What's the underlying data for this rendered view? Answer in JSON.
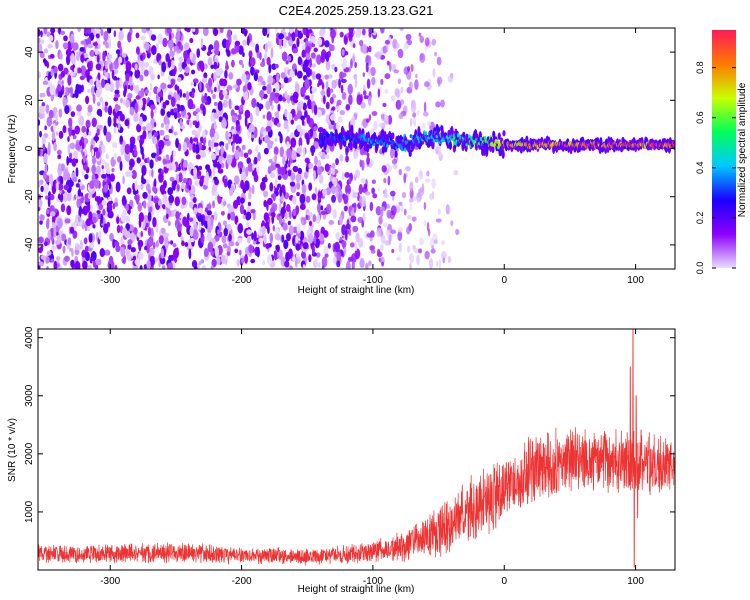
{
  "title": "C2E4.2025.259.13.23.G21",
  "chart_data": [
    {
      "type": "heatmap",
      "name": "spectrogram",
      "xlabel": "Height of straight line (km)",
      "ylabel": "Frequency (Hz)",
      "xlim": [
        -355,
        130
      ],
      "ylim": [
        -50,
        50
      ],
      "xticks": [
        -300,
        -200,
        -100,
        0,
        100
      ],
      "yticks": [
        -40,
        -20,
        0,
        20,
        40
      ],
      "xtick_labels": [
        "-300",
        "-200",
        "-100",
        "0",
        "100"
      ],
      "ytick_labels": [
        "-40",
        "-20",
        "0",
        "20",
        "40"
      ],
      "noise_region": {
        "x_range": [
          -355,
          -65
        ],
        "fade_to": -20
      },
      "signal_track": [
        {
          "x": -140,
          "f": 3.5,
          "amp": 0.3
        },
        {
          "x": -120,
          "f": 4.5,
          "amp": 0.35
        },
        {
          "x": -100,
          "f": 3.0,
          "amp": 0.4
        },
        {
          "x": -80,
          "f": 1.0,
          "amp": 0.4
        },
        {
          "x": -60,
          "f": 5.0,
          "amp": 0.45
        },
        {
          "x": -40,
          "f": 4.0,
          "amp": 0.5
        },
        {
          "x": -20,
          "f": 3.0,
          "amp": 0.6
        },
        {
          "x": 0,
          "f": 1.5,
          "amp": 0.8
        },
        {
          "x": 20,
          "f": 1.5,
          "amp": 0.85
        },
        {
          "x": 40,
          "f": 1.5,
          "amp": 0.9
        },
        {
          "x": 60,
          "f": 1.5,
          "amp": 0.9
        },
        {
          "x": 80,
          "f": 1.5,
          "amp": 0.92
        },
        {
          "x": 100,
          "f": 1.5,
          "amp": 0.92
        },
        {
          "x": 130,
          "f": 1.5,
          "amp": 0.95
        }
      ],
      "colorbar": {
        "label": "Normalized spectral amplitude",
        "range": [
          0,
          0.95
        ],
        "ticks": [
          0.0,
          0.2,
          0.4,
          0.6,
          0.8
        ],
        "tick_labels": [
          "0.0",
          "0.2",
          "0.4",
          "0.6",
          "0.8"
        ],
        "colors": [
          "#e9dcff",
          "#8c00ff",
          "#1a00ff",
          "#00c8ff",
          "#00ff5a",
          "#c8ff00",
          "#ff7a00",
          "#ff1a5a"
        ]
      }
    },
    {
      "type": "line",
      "name": "snr",
      "xlabel": "Height of straight line (km)",
      "ylabel": "SNR (10 * v/v)",
      "xlim": [
        -355,
        130
      ],
      "ylim": [
        0,
        4150
      ],
      "xticks": [
        -300,
        -200,
        -100,
        0,
        100
      ],
      "yticks": [
        1000,
        2000,
        3000,
        4000
      ],
      "xtick_labels": [
        "-300",
        "-200",
        "-100",
        "0",
        "100"
      ],
      "ytick_labels": [
        "1000",
        "2000",
        "3000",
        "4000"
      ],
      "color": "#ee3333",
      "envelope": [
        {
          "x": -355,
          "mean": 280,
          "noise": 150
        },
        {
          "x": -300,
          "mean": 280,
          "noise": 150
        },
        {
          "x": -250,
          "mean": 300,
          "noise": 160
        },
        {
          "x": -200,
          "mean": 250,
          "noise": 140
        },
        {
          "x": -150,
          "mean": 230,
          "noise": 130
        },
        {
          "x": -100,
          "mean": 300,
          "noise": 170
        },
        {
          "x": -75,
          "mean": 420,
          "noise": 260
        },
        {
          "x": -50,
          "mean": 650,
          "noise": 420
        },
        {
          "x": -25,
          "mean": 1000,
          "noise": 550
        },
        {
          "x": 0,
          "mean": 1350,
          "noise": 600
        },
        {
          "x": 25,
          "mean": 1750,
          "noise": 550
        },
        {
          "x": 50,
          "mean": 1900,
          "noise": 500
        },
        {
          "x": 75,
          "mean": 1850,
          "noise": 500
        },
        {
          "x": 100,
          "mean": 1850,
          "noise": 550
        },
        {
          "x": 130,
          "mean": 1800,
          "noise": 450
        }
      ],
      "spikes": [
        {
          "x": 96,
          "value": 3500
        },
        {
          "x": 98,
          "value": 4150
        },
        {
          "x": 99,
          "value": 50
        },
        {
          "x": 100.5,
          "value": 3000
        },
        {
          "x": 101.5,
          "value": 900
        }
      ]
    }
  ]
}
